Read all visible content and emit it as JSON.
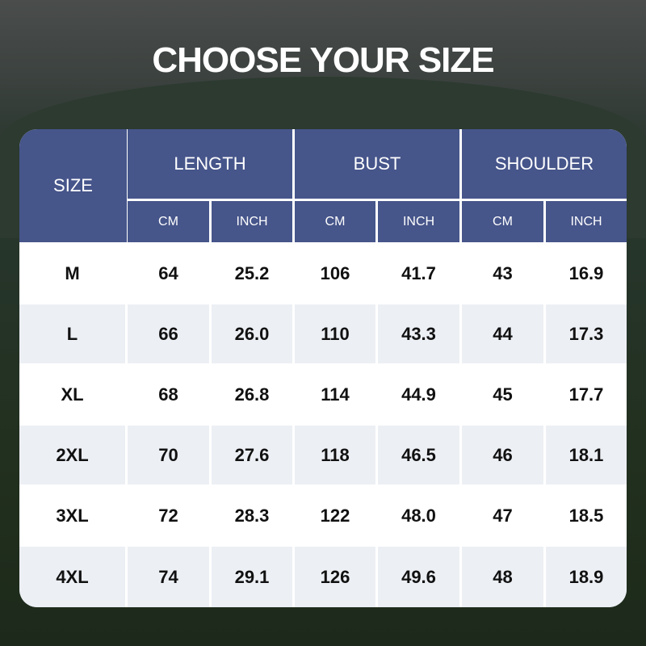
{
  "title": "CHOOSE YOUR SIZE",
  "colors": {
    "header": "#46558a",
    "row_alt": "#eceff4",
    "row": "#ffffff"
  },
  "headers": {
    "size": "SIZE",
    "groups": [
      "LENGTH",
      "BUST",
      "SHOULDER"
    ],
    "units": [
      "CM",
      "INCH",
      "CM",
      "INCH",
      "CM",
      "INCH"
    ]
  },
  "rows": [
    [
      "M",
      "64",
      "25.2",
      "106",
      "41.7",
      "43",
      "16.9"
    ],
    [
      "L",
      "66",
      "26.0",
      "110",
      "43.3",
      "44",
      "17.3"
    ],
    [
      "XL",
      "68",
      "26.8",
      "114",
      "44.9",
      "45",
      "17.7"
    ],
    [
      "2XL",
      "70",
      "27.6",
      "118",
      "46.5",
      "46",
      "18.1"
    ],
    [
      "3XL",
      "72",
      "28.3",
      "122",
      "48.0",
      "47",
      "18.5"
    ],
    [
      "4XL",
      "74",
      "29.1",
      "126",
      "49.6",
      "48",
      "18.9"
    ]
  ]
}
